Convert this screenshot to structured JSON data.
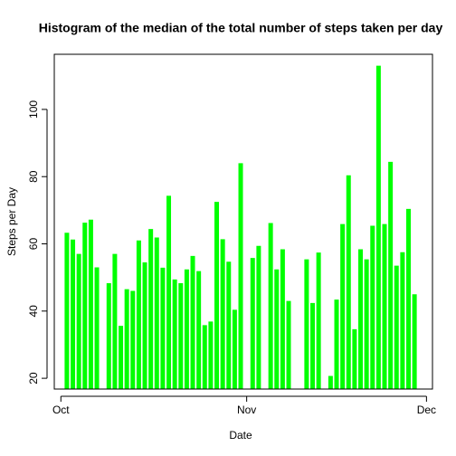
{
  "chart_data": {
    "type": "histogram-lines",
    "title": "Histogram of the median of the total number of steps taken per day",
    "xlabel": "Date",
    "ylabel": "Steps per Day",
    "x": [
      1,
      2,
      3,
      4,
      5,
      6,
      7,
      8,
      9,
      10,
      11,
      12,
      13,
      14,
      15,
      16,
      17,
      18,
      19,
      20,
      21,
      22,
      23,
      24,
      25,
      26,
      27,
      28,
      29,
      30,
      31,
      32,
      33,
      34,
      35,
      36,
      37,
      38,
      39,
      40,
      41,
      42,
      43,
      44,
      45,
      46,
      47,
      48,
      49,
      50,
      51,
      52,
      53,
      54,
      55,
      56,
      57,
      58,
      59,
      60,
      61
    ],
    "values": [
      null,
      63.3,
      61.3,
      57,
      66.3,
      67.2,
      53,
      null,
      48.3,
      57,
      35.6,
      46.5,
      46,
      61,
      54.5,
      64.4,
      61.9,
      52.9,
      74.3,
      49.4,
      48.3,
      52.4,
      56.4,
      51.9,
      35.8,
      36.9,
      72.5,
      61.4,
      54.7,
      40.4,
      84,
      null,
      55.8,
      59.4,
      null,
      66.2,
      52.4,
      58.4,
      43,
      null,
      null,
      55.4,
      42.4,
      57.4,
      null,
      20.7,
      43.4,
      65.9,
      80.4,
      34.6,
      58.4,
      55.4,
      65.4,
      113,
      65.9,
      84.4,
      53.5,
      57.5,
      70.4,
      45,
      null
    ],
    "color": "#00ff00",
    "xlim": [
      -0.1,
      63
    ],
    "xticks": [
      {
        "value": 1,
        "label": "Oct"
      },
      {
        "value": 32,
        "label": "Nov"
      },
      {
        "value": 62,
        "label": "Dec"
      }
    ],
    "ylim": [
      16.8,
      116.4
    ],
    "yticks": [
      20,
      40,
      60,
      80,
      100
    ]
  }
}
